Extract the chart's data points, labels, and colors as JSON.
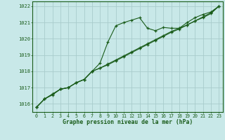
{
  "title": "Graphe pression niveau de la mer (hPa)",
  "bg_color": "#c8e8e8",
  "grid_color": "#a8cccc",
  "line_color": "#1a5c1a",
  "x_ticks": [
    0,
    1,
    2,
    3,
    4,
    5,
    6,
    7,
    8,
    9,
    10,
    11,
    12,
    13,
    14,
    15,
    16,
    17,
    18,
    19,
    20,
    21,
    22,
    23
  ],
  "ylim": [
    1015.5,
    1022.3
  ],
  "yticks": [
    1016,
    1017,
    1018,
    1019,
    1020,
    1021,
    1022
  ],
  "line1": [
    1015.8,
    1016.3,
    1016.6,
    1016.9,
    1017.0,
    1017.3,
    1017.5,
    1018.0,
    1018.5,
    1019.8,
    1020.8,
    1021.0,
    1021.15,
    1021.3,
    1020.65,
    1020.5,
    1020.7,
    1020.65,
    1020.65,
    1021.0,
    1021.3,
    1021.5,
    1021.65,
    1022.0
  ],
  "line2": [
    1015.8,
    1016.3,
    1016.6,
    1016.9,
    1017.0,
    1017.3,
    1017.5,
    1018.0,
    1018.2,
    1018.45,
    1018.7,
    1018.95,
    1019.2,
    1019.45,
    1019.7,
    1019.95,
    1020.2,
    1020.45,
    1020.65,
    1020.85,
    1021.1,
    1021.35,
    1021.6,
    1022.0
  ],
  "line3": [
    1015.8,
    1016.3,
    1016.55,
    1016.9,
    1017.0,
    1017.3,
    1017.5,
    1018.0,
    1018.2,
    1018.4,
    1018.65,
    1018.9,
    1019.15,
    1019.4,
    1019.65,
    1019.9,
    1020.15,
    1020.4,
    1020.6,
    1020.85,
    1021.1,
    1021.3,
    1021.55,
    1022.0
  ]
}
